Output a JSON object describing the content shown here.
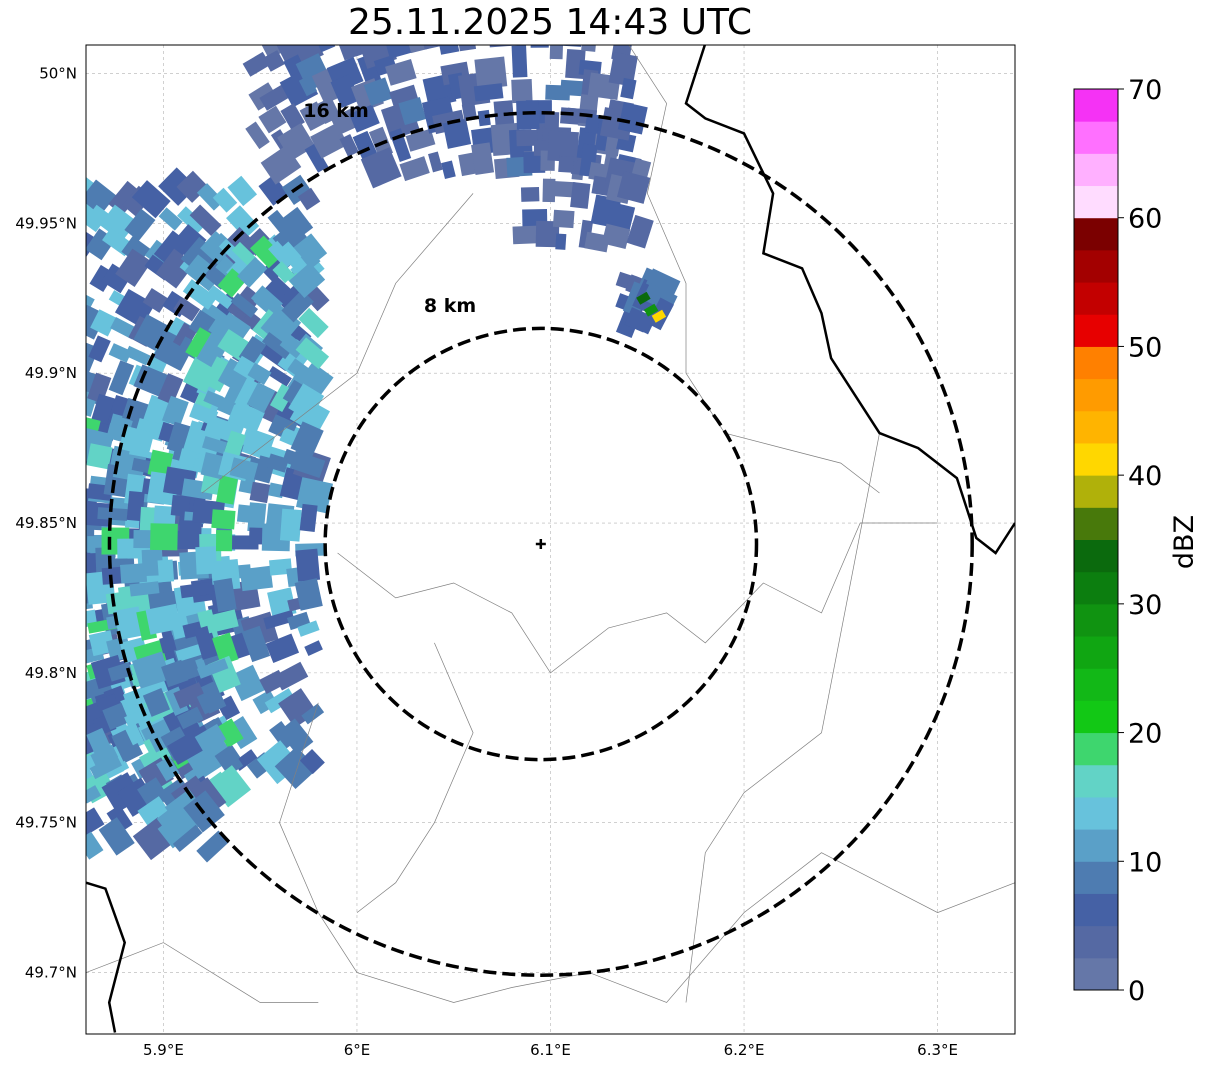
{
  "title": "25.11.2025 14:43 UTC",
  "map": {
    "lon_range": [
      5.86,
      6.34
    ],
    "lat_range": [
      49.6795,
      50.0095
    ],
    "lon_ticks": [
      {
        "v": 5.9,
        "label": "5.9°E"
      },
      {
        "v": 6.0,
        "label": "6°E"
      },
      {
        "v": 6.1,
        "label": "6.1°E"
      },
      {
        "v": 6.2,
        "label": "6.2°E"
      },
      {
        "v": 6.3,
        "label": "6.3°E"
      }
    ],
    "lat_ticks": [
      {
        "v": 50.0,
        "label": "50°N"
      },
      {
        "v": 49.95,
        "label": "49.95°N"
      },
      {
        "v": 49.9,
        "label": "49.9°N"
      },
      {
        "v": 49.85,
        "label": "49.85°N"
      },
      {
        "v": 49.8,
        "label": "49.8°N"
      },
      {
        "v": 49.75,
        "label": "49.75°N"
      },
      {
        "v": 49.7,
        "label": "49.7°N"
      }
    ],
    "grid": true,
    "radar_site": {
      "lon": 6.095,
      "lat": 49.843
    },
    "range_rings": [
      {
        "label": "8 km",
        "radius_km": 8
      },
      {
        "label": "16 km",
        "radius_km": 16
      }
    ]
  },
  "colorbar": {
    "label": "dBZ",
    "min": 0,
    "max": 70,
    "ticks": [
      0,
      10,
      20,
      30,
      40,
      50,
      60,
      70
    ],
    "colors": [
      "#6577a8",
      "#5569a3",
      "#4561a5",
      "#4e7cb1",
      "#5aa0c8",
      "#67c2dc",
      "#62d3c6",
      "#3ed66e",
      "#12c815",
      "#12b817",
      "#10a612",
      "#109311",
      "#0c7e0f",
      "#0b6a0d",
      "#48790b",
      "#b0b10a",
      "#ffd700",
      "#ffb400",
      "#ff9b00",
      "#ff8000",
      "#e70000",
      "#c30000",
      "#a30000",
      "#7b0000",
      "#ffdcff",
      "#ffb0ff",
      "#ff70ff",
      "#f532f5"
    ]
  },
  "reflectivity_echoes": [
    {
      "area": "northwest",
      "lon": 5.93,
      "lat": 49.92,
      "dbz": 12
    },
    {
      "area": "west",
      "lon": 5.9,
      "lat": 49.83,
      "dbz": 15
    },
    {
      "area": "north",
      "lon": 6.01,
      "lat": 49.985,
      "dbz": 5
    },
    {
      "area": "northeast",
      "lon": 6.12,
      "lat": 49.96,
      "dbz": 4
    },
    {
      "area": "east-cell",
      "lon": 6.155,
      "lat": 49.92,
      "dbz": 38
    }
  ]
}
